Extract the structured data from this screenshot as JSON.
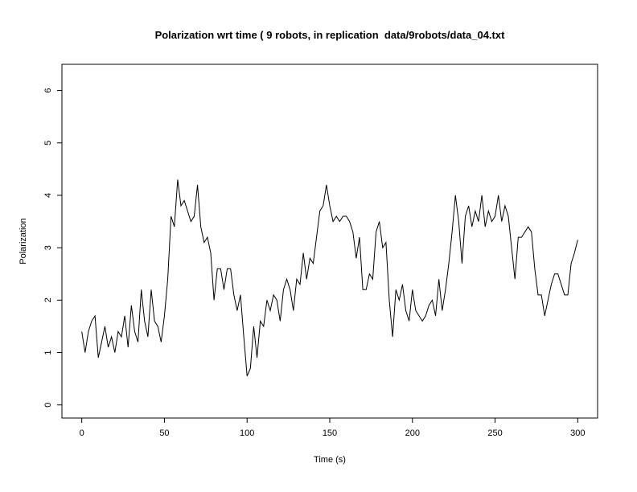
{
  "chart_data": {
    "type": "line",
    "title": "Polarization wrt time ( 9 robots, in replication  data/9robots/data_04.txt",
    "x_label": "Time (s)",
    "y_label": "Polarization",
    "xlim": [
      -12,
      312
    ],
    "ylim": [
      -0.25,
      6.5
    ],
    "xticks": [
      0,
      50,
      100,
      150,
      200,
      250,
      300
    ],
    "yticks": [
      0,
      1,
      2,
      3,
      4,
      5,
      6
    ],
    "x": [
      0,
      2,
      4,
      6,
      8,
      10,
      12,
      14,
      16,
      18,
      20,
      22,
      24,
      26,
      28,
      30,
      32,
      34,
      36,
      38,
      40,
      42,
      44,
      46,
      48,
      50,
      52,
      54,
      56,
      58,
      60,
      62,
      64,
      66,
      68,
      70,
      72,
      74,
      76,
      78,
      80,
      82,
      84,
      86,
      88,
      90,
      92,
      94,
      96,
      98,
      100,
      102,
      104,
      106,
      108,
      110,
      112,
      114,
      116,
      118,
      120,
      122,
      124,
      126,
      128,
      130,
      132,
      134,
      136,
      138,
      140,
      142,
      144,
      146,
      148,
      150,
      152,
      154,
      156,
      158,
      160,
      162,
      164,
      166,
      168,
      170,
      172,
      174,
      176,
      178,
      180,
      182,
      184,
      186,
      188,
      190,
      192,
      194,
      196,
      198,
      200,
      202,
      204,
      206,
      208,
      210,
      212,
      214,
      216,
      218,
      220,
      222,
      224,
      226,
      228,
      230,
      232,
      234,
      236,
      238,
      240,
      242,
      244,
      246,
      248,
      250,
      252,
      254,
      256,
      258,
      260,
      262,
      264,
      266,
      268,
      270,
      272,
      274,
      276,
      278,
      280,
      282,
      284,
      286,
      288,
      290,
      292,
      294,
      296,
      298,
      300
    ],
    "series": [
      {
        "color": "#000000",
        "values": [
          1.4,
          1.0,
          1.4,
          1.6,
          1.7,
          0.9,
          1.2,
          1.5,
          1.1,
          1.3,
          1.0,
          1.4,
          1.3,
          1.7,
          1.1,
          1.9,
          1.4,
          1.2,
          2.2,
          1.6,
          1.3,
          2.2,
          1.6,
          1.5,
          1.2,
          1.7,
          2.4,
          3.6,
          3.4,
          4.3,
          3.8,
          3.9,
          3.7,
          3.5,
          3.6,
          4.2,
          3.4,
          3.1,
          3.2,
          2.9,
          2.0,
          2.6,
          2.6,
          2.2,
          2.6,
          2.6,
          2.1,
          1.8,
          2.1,
          1.3,
          0.55,
          0.7,
          1.5,
          0.9,
          1.6,
          1.5,
          2.0,
          1.8,
          2.1,
          2.0,
          1.6,
          2.2,
          2.4,
          2.2,
          1.8,
          2.4,
          2.3,
          2.9,
          2.4,
          2.8,
          2.7,
          3.2,
          3.7,
          3.8,
          4.2,
          3.8,
          3.5,
          3.6,
          3.5,
          3.6,
          3.6,
          3.5,
          3.3,
          2.8,
          3.2,
          2.2,
          2.2,
          2.5,
          2.4,
          3.3,
          3.5,
          3.0,
          3.1,
          2.0,
          1.3,
          2.2,
          2.0,
          2.3,
          1.8,
          1.6,
          2.2,
          1.8,
          1.7,
          1.6,
          1.7,
          1.9,
          2.0,
          1.7,
          2.4,
          1.8,
          2.2,
          2.7,
          3.3,
          4.0,
          3.5,
          2.7,
          3.6,
          3.8,
          3.4,
          3.7,
          3.5,
          4.0,
          3.4,
          3.7,
          3.5,
          3.6,
          4.0,
          3.5,
          3.8,
          3.6,
          3.0,
          2.4,
          3.2,
          3.2,
          3.3,
          3.4,
          3.3,
          2.6,
          2.1,
          2.1,
          1.7,
          2.0,
          2.3,
          2.5,
          2.5,
          2.3,
          2.1,
          2.1,
          2.7,
          2.9,
          3.15
        ]
      }
    ]
  }
}
